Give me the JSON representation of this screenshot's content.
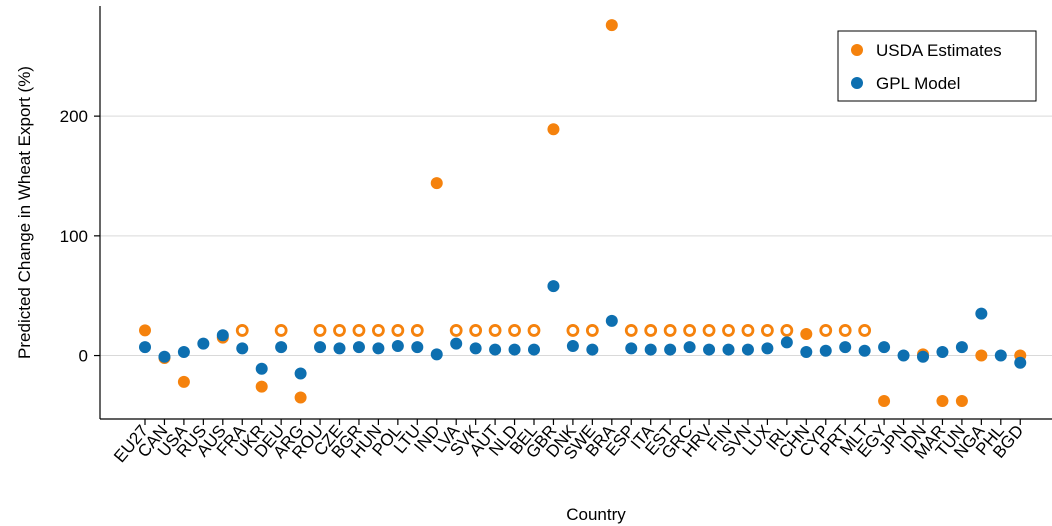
{
  "chart_data": {
    "type": "scatter",
    "xlabel": "Country",
    "ylabel": "Predicted Change in Wheat Export (%)",
    "ylim": [
      -53,
      292
    ],
    "yticks": [
      0,
      100,
      200
    ],
    "grid": "horizontal",
    "legend_position": "top-right",
    "categories": [
      "EU27",
      "CAN",
      "USA",
      "RUS",
      "AUS",
      "FRA",
      "UKR",
      "DEU",
      "ARG",
      "ROU",
      "CZE",
      "BGR",
      "HUN",
      "POL",
      "LTU",
      "IND",
      "LVA",
      "SVK",
      "AUT",
      "NLD",
      "BEL",
      "GBR",
      "DNK",
      "SWE",
      "BRA",
      "ESP",
      "ITA",
      "EST",
      "GRC",
      "HRV",
      "FIN",
      "SVN",
      "LUX",
      "IRL",
      "CHN",
      "CYP",
      "PRT",
      "MLT",
      "EGY",
      "JPN",
      "IDN",
      "MAR",
      "TUN",
      "NGA",
      "PHL",
      "BGD"
    ],
    "series": [
      {
        "name": "USDA Estimates",
        "color": "#f5820d",
        "values": [
          21,
          -2,
          -22,
          null,
          15,
          21,
          -26,
          21,
          -35,
          21,
          21,
          21,
          21,
          21,
          21,
          144,
          21,
          21,
          21,
          21,
          21,
          189,
          21,
          21,
          276,
          21,
          21,
          21,
          21,
          21,
          21,
          21,
          21,
          21,
          18,
          21,
          21,
          21,
          -38,
          null,
          1,
          -38,
          -38,
          0,
          null,
          0
        ],
        "hollow": [
          false,
          false,
          false,
          false,
          false,
          true,
          false,
          true,
          false,
          true,
          true,
          true,
          true,
          true,
          true,
          false,
          true,
          true,
          true,
          true,
          true,
          false,
          true,
          true,
          false,
          true,
          true,
          true,
          true,
          true,
          true,
          true,
          true,
          true,
          false,
          true,
          true,
          true,
          false,
          false,
          false,
          false,
          false,
          false,
          false,
          false
        ]
      },
      {
        "name": "GPL Model",
        "color": "#0d6fb0",
        "values": [
          7,
          -1,
          3,
          10,
          17,
          6,
          -11,
          7,
          -15,
          7,
          6,
          7,
          6,
          8,
          7,
          1,
          10,
          6,
          5,
          5,
          5,
          58,
          8,
          5,
          29,
          6,
          5,
          5,
          7,
          5,
          5,
          5,
          6,
          11,
          3,
          4,
          7,
          4,
          7,
          0,
          -1,
          3,
          7,
          35,
          0,
          -6
        ]
      }
    ]
  }
}
